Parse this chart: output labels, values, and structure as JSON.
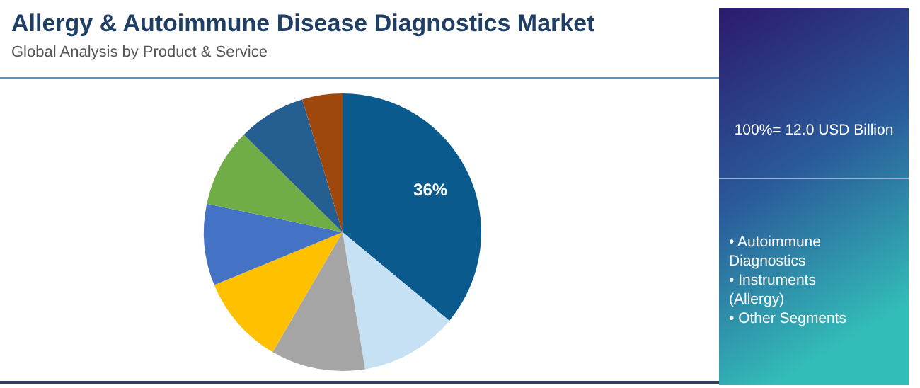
{
  "chart_data": {
    "type": "pie",
    "title": "Allergy & Autoimmune Disease Diagnostics Market",
    "subtitle": "Global Analysis by Product & Service",
    "categories": [
      null,
      null,
      null,
      null,
      null,
      null,
      null,
      null
    ],
    "values": [
      36,
      11.4,
      11,
      10.4,
      9.5,
      9.1,
      7.9,
      4.7
    ],
    "colors": [
      "#0b5a8e",
      "#c5e1f3",
      "#a5a5a5",
      "#ffc000",
      "#4472c4",
      "#70ad47",
      "#255e91",
      "#9e480e"
    ],
    "value_labels": [
      "36%",
      null,
      null,
      null,
      null,
      null,
      null,
      null
    ],
    "annotations": [
      "100%= 12.0 USD Billion",
      "• Autoimmune Diagnostics",
      "• Instruments (Allergy)",
      "• Other Segments"
    ]
  }
}
